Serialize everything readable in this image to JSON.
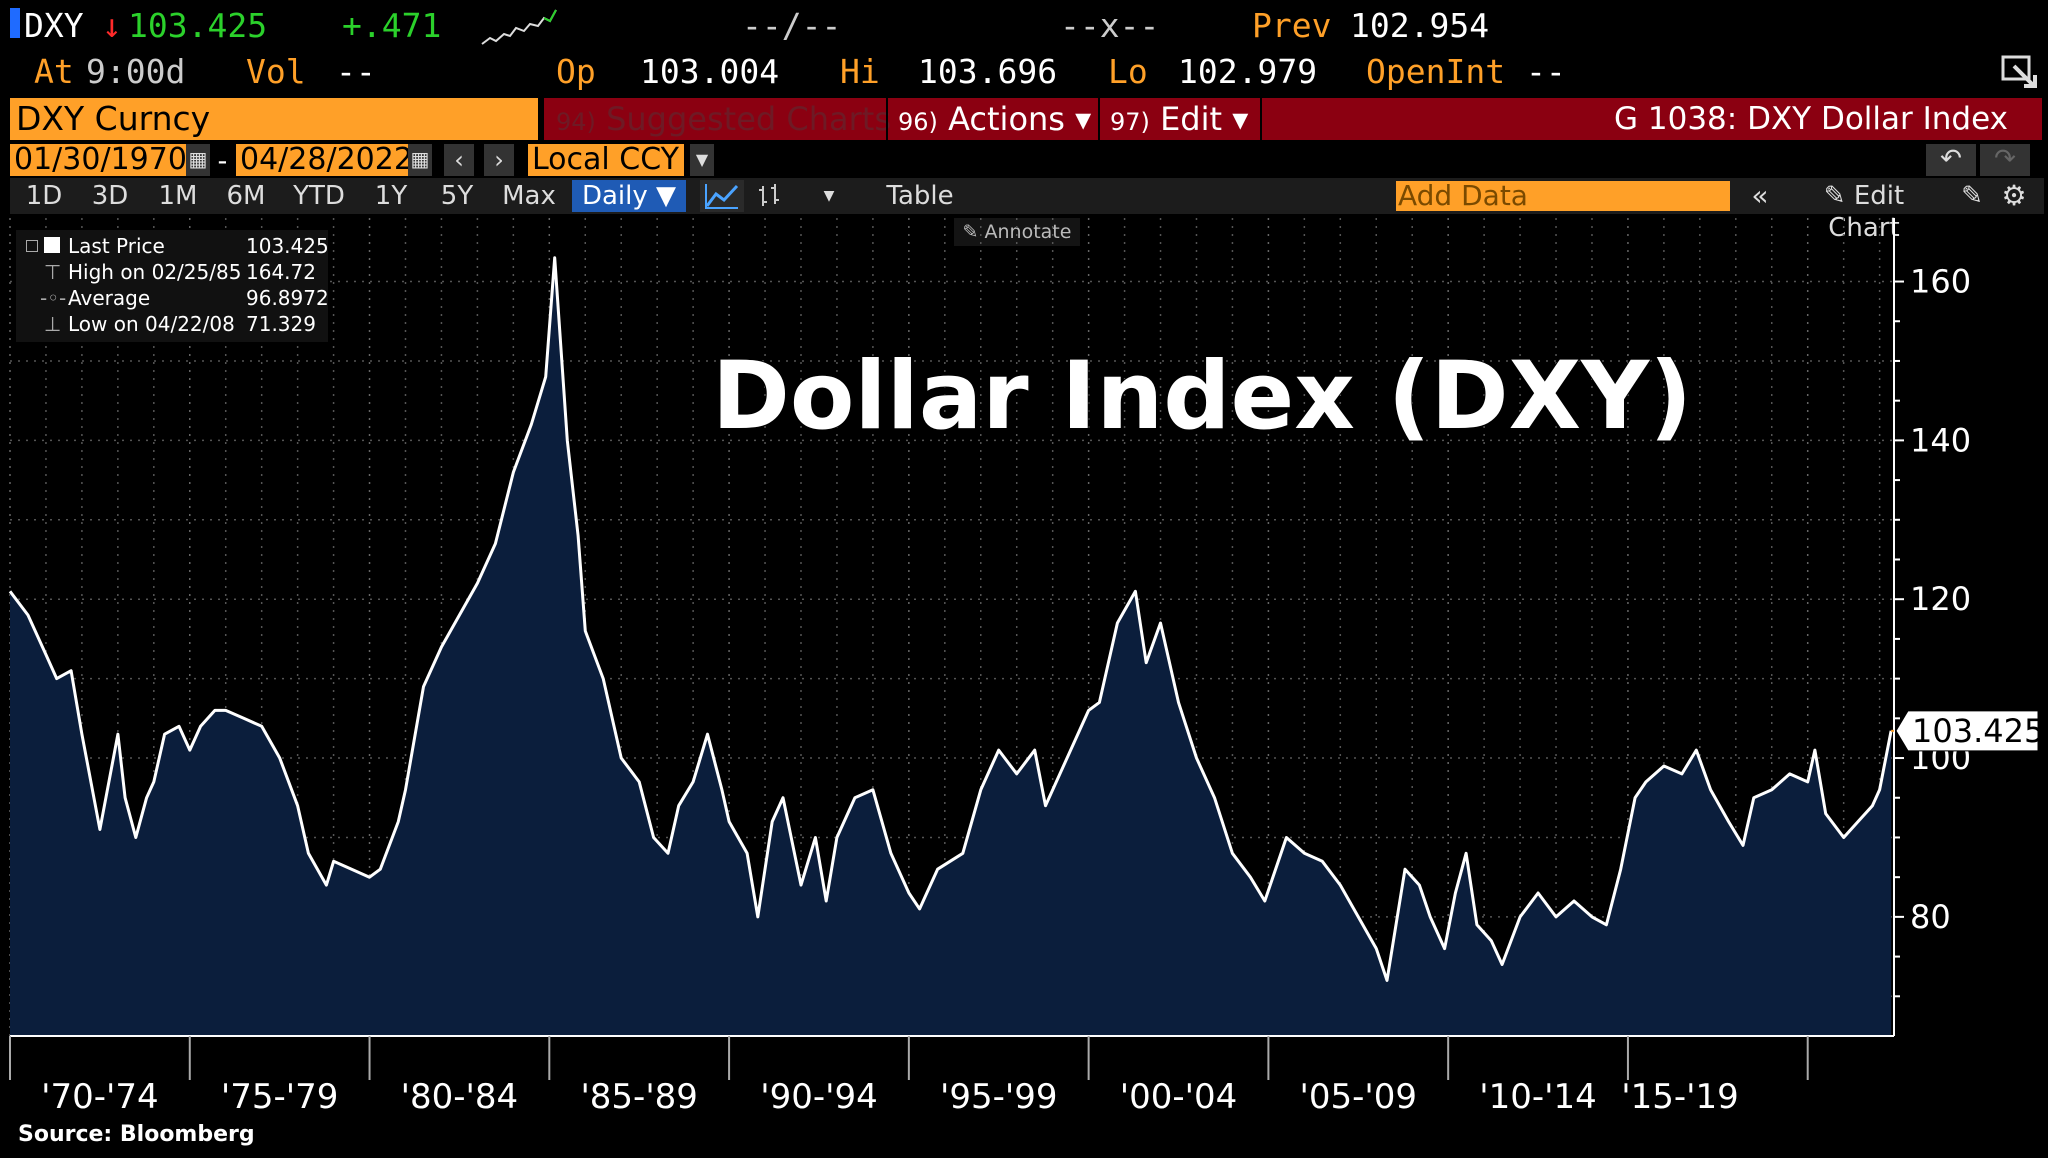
{
  "header": {
    "ticker": "DXY",
    "direction_arrow": "↓",
    "last": "103.425",
    "change": "+.471",
    "bid_ask": "--/--",
    "size": "--x--",
    "prev_label": "Prev",
    "prev": "102.954",
    "at_label": "At",
    "at_time": "9:00d",
    "vol_label": "Vol",
    "vol": "--",
    "op_label": "Op",
    "op": "103.004",
    "hi_label": "Hi",
    "hi": "103.696",
    "lo_label": "Lo",
    "lo": "102.979",
    "openint_label": "OpenInt",
    "openint": "--"
  },
  "toolbar": {
    "security": "DXY Curncy",
    "suggested_num": "94)",
    "suggested": "Suggested Charts",
    "actions_num": "96)",
    "actions": "Actions ▾",
    "edit_num": "97)",
    "edit": "Edit ▾",
    "graph_title": "G 1038: DXY Dollar Index"
  },
  "dates": {
    "start": "01/30/1970",
    "dash": "-",
    "end": "04/28/2022",
    "currency": "Local CCY"
  },
  "range_buttons": [
    "1D",
    "3D",
    "1M",
    "6M",
    "YTD",
    "1Y",
    "5Y",
    "Max"
  ],
  "periodicity": "Daily ▼",
  "table_label": "Table",
  "add_data_placeholder": "Add Data",
  "edit_chart_label": "Edit Chart",
  "annotate_label": "Annotate",
  "legend": {
    "last_label": "Last Price",
    "last_value": "103.425",
    "high_label": "High on 02/25/85",
    "high_value": "164.72",
    "avg_label": "Average",
    "avg_value": "96.8972",
    "low_label": "Low on 04/22/08",
    "low_value": "71.329"
  },
  "source": "Source: Bloomberg",
  "colors": {
    "amber": "#ffa028",
    "green": "#2bd12b",
    "red": "#ff2a2a",
    "area_fill": "#0b1e3c",
    "line": "#ffffff"
  },
  "chart_data": {
    "type": "area",
    "title": "Dollar Index (DXY)",
    "ylim": [
      65,
      168
    ],
    "xlim": [
      1970.0,
      2022.4
    ],
    "y_ticks": [
      80,
      100,
      120,
      140,
      160
    ],
    "x_tick_labels": [
      "'70-'74",
      "'75-'79",
      "'80-'84",
      "'85-'89",
      "'90-'94",
      "'95-'99",
      "'00-'04",
      "'05-'09",
      "'10-'14",
      "'15-'19"
    ],
    "x_tick_positions": [
      1970,
      1975,
      1980,
      1985,
      1990,
      1995,
      2000,
      2005,
      2010,
      2015,
      2020
    ],
    "last_value_label": "103.425",
    "last_value": 103.425,
    "grid": true,
    "x": [
      1970.0,
      1970.5,
      1971.0,
      1971.3,
      1971.7,
      1972.0,
      1972.5,
      1973.0,
      1973.2,
      1973.5,
      1973.8,
      1974.0,
      1974.3,
      1974.7,
      1975.0,
      1975.3,
      1975.7,
      1976.0,
      1976.5,
      1977.0,
      1977.5,
      1978.0,
      1978.3,
      1978.8,
      1979.0,
      1979.5,
      1980.0,
      1980.3,
      1980.8,
      1981.0,
      1981.5,
      1982.0,
      1982.5,
      1983.0,
      1983.5,
      1984.0,
      1984.5,
      1984.9,
      1985.15,
      1985.5,
      1985.8,
      1986.0,
      1986.5,
      1987.0,
      1987.5,
      1987.9,
      1988.3,
      1988.6,
      1989.0,
      1989.4,
      1989.8,
      1990.0,
      1990.5,
      1990.8,
      1991.2,
      1991.5,
      1992.0,
      1992.4,
      1992.7,
      1993.0,
      1993.5,
      1994.0,
      1994.5,
      1995.0,
      1995.3,
      1995.8,
      1996.5,
      1997.0,
      1997.5,
      1998.0,
      1998.5,
      1998.8,
      1999.2,
      1999.6,
      2000.0,
      2000.3,
      2000.8,
      2001.3,
      2001.6,
      2002.0,
      2002.5,
      2003.0,
      2003.5,
      2004.0,
      2004.5,
      2004.9,
      2005.5,
      2006.0,
      2006.5,
      2007.0,
      2007.5,
      2008.0,
      2008.3,
      2008.8,
      2009.2,
      2009.5,
      2009.9,
      2010.2,
      2010.5,
      2010.8,
      2011.2,
      2011.5,
      2012.0,
      2012.5,
      2013.0,
      2013.5,
      2014.0,
      2014.4,
      2014.8,
      2015.2,
      2015.5,
      2016.0,
      2016.5,
      2016.9,
      2017.3,
      2017.8,
      2018.2,
      2018.5,
      2019.0,
      2019.5,
      2020.0,
      2020.2,
      2020.5,
      2021.0,
      2021.4,
      2021.8,
      2022.0,
      2022.32
    ],
    "values": [
      121,
      118,
      113,
      110,
      111,
      103,
      91,
      103,
      95,
      90,
      95,
      97,
      103,
      104,
      101,
      104,
      106,
      106,
      105,
      104,
      100,
      94,
      88,
      84,
      87,
      86,
      85,
      86,
      92,
      96,
      109,
      114,
      118,
      122,
      127,
      136,
      142,
      148,
      163,
      140,
      128,
      116,
      110,
      100,
      97,
      90,
      88,
      94,
      97,
      103,
      96,
      92,
      88,
      80,
      92,
      95,
      84,
      90,
      82,
      90,
      95,
      96,
      88,
      83,
      81,
      86,
      88,
      96,
      101,
      98,
      101,
      94,
      98,
      102,
      106,
      107,
      117,
      121,
      112,
      117,
      107,
      100,
      95,
      88,
      85,
      82,
      90,
      88,
      87,
      84,
      80,
      76,
      72,
      86,
      84,
      80,
      76,
      83,
      88,
      79,
      77,
      74,
      80,
      83,
      80,
      82,
      80,
      79,
      86,
      95,
      97,
      99,
      98,
      101,
      96,
      92,
      89,
      95,
      96,
      98,
      97,
      101,
      93,
      90,
      92,
      94,
      96,
      103.425
    ]
  }
}
